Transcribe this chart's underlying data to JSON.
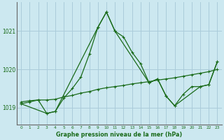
{
  "background_color": "#cce8f0",
  "grid_color": "#aaccda",
  "line_color": "#1a6b1a",
  "title": "Graphe pression niveau de la mer (hPa)",
  "xlim": [
    -0.5,
    23.5
  ],
  "ylim": [
    1018.55,
    1021.75
  ],
  "yticks": [
    1019,
    1020,
    1021
  ],
  "xticks": [
    0,
    1,
    2,
    3,
    4,
    5,
    6,
    7,
    8,
    9,
    10,
    11,
    12,
    13,
    14,
    15,
    16,
    17,
    18,
    19,
    20,
    21,
    22,
    23
  ],
  "series1_x": [
    0,
    1,
    2,
    3,
    4,
    5,
    6,
    7,
    8,
    9,
    10,
    11,
    12,
    13,
    14,
    15,
    16,
    17,
    18,
    19,
    20,
    21,
    22,
    23
  ],
  "series1_y": [
    1019.1,
    1019.15,
    1019.2,
    1018.85,
    1018.9,
    1019.25,
    1019.5,
    1019.8,
    1020.4,
    1021.1,
    1021.5,
    1021.0,
    1020.85,
    1020.45,
    1020.15,
    1019.65,
    1019.75,
    1019.3,
    1019.05,
    1019.35,
    1019.55,
    1019.55,
    1019.6,
    1020.2
  ],
  "series2_x": [
    0,
    1,
    2,
    3,
    4,
    5,
    6,
    7,
    8,
    9,
    10,
    11,
    12,
    13,
    14,
    15,
    16,
    17,
    18,
    19,
    20,
    21,
    22,
    23
  ],
  "series2_y": [
    1019.15,
    1019.18,
    1019.2,
    1019.2,
    1019.22,
    1019.28,
    1019.32,
    1019.38,
    1019.42,
    1019.48,
    1019.52,
    1019.55,
    1019.58,
    1019.62,
    1019.65,
    1019.68,
    1019.72,
    1019.75,
    1019.78,
    1019.82,
    1019.86,
    1019.9,
    1019.94,
    1020.0
  ],
  "series3_x": [
    0,
    3,
    4,
    9,
    10,
    11,
    15,
    16,
    17,
    18,
    21,
    22,
    23
  ],
  "series3_y": [
    1019.1,
    1018.85,
    1018.9,
    1021.1,
    1021.5,
    1021.0,
    1019.65,
    1019.75,
    1019.3,
    1019.05,
    1019.55,
    1019.6,
    1020.2
  ]
}
